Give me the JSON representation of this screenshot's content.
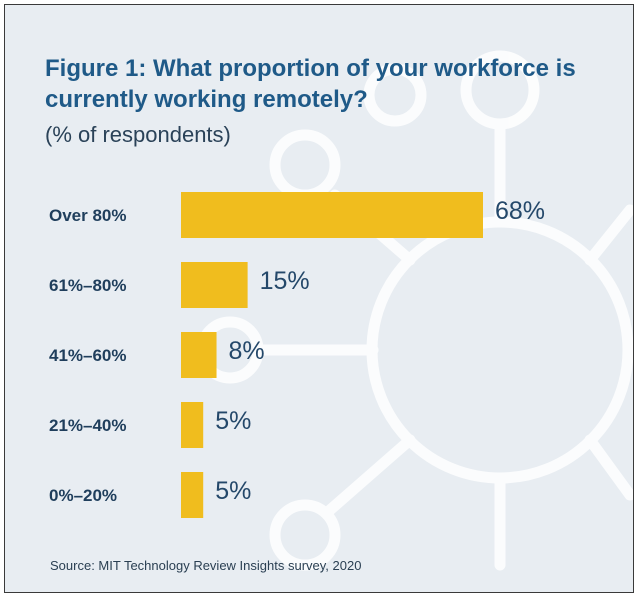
{
  "colors": {
    "bar": "#f0bd1e",
    "category_text": "#1f3e5c",
    "value_text": "#24486a",
    "title": "#1f5a88",
    "background": "#e8edf2",
    "decoration": "#ffffff"
  },
  "decoration": {
    "background_motif": "virus-outline-icon"
  },
  "chart_data": {
    "type": "bar",
    "orientation": "horizontal",
    "title": "Figure 1: What proportion of your workforce is currently working remotely?",
    "subtitle": "(% of respondents)",
    "categories": [
      "Over 80%",
      "61%–80%",
      "41%–60%",
      "21%–40%",
      "0%–20%"
    ],
    "values": [
      68,
      15,
      8,
      5,
      5
    ],
    "value_labels": [
      "68%",
      "15%",
      "8%",
      "5%",
      "5%"
    ],
    "unit": "%",
    "xlim": [
      0,
      68
    ],
    "grid": false,
    "legend": "none",
    "source": "Source: MIT Technology Review Insights survey, 2020"
  }
}
